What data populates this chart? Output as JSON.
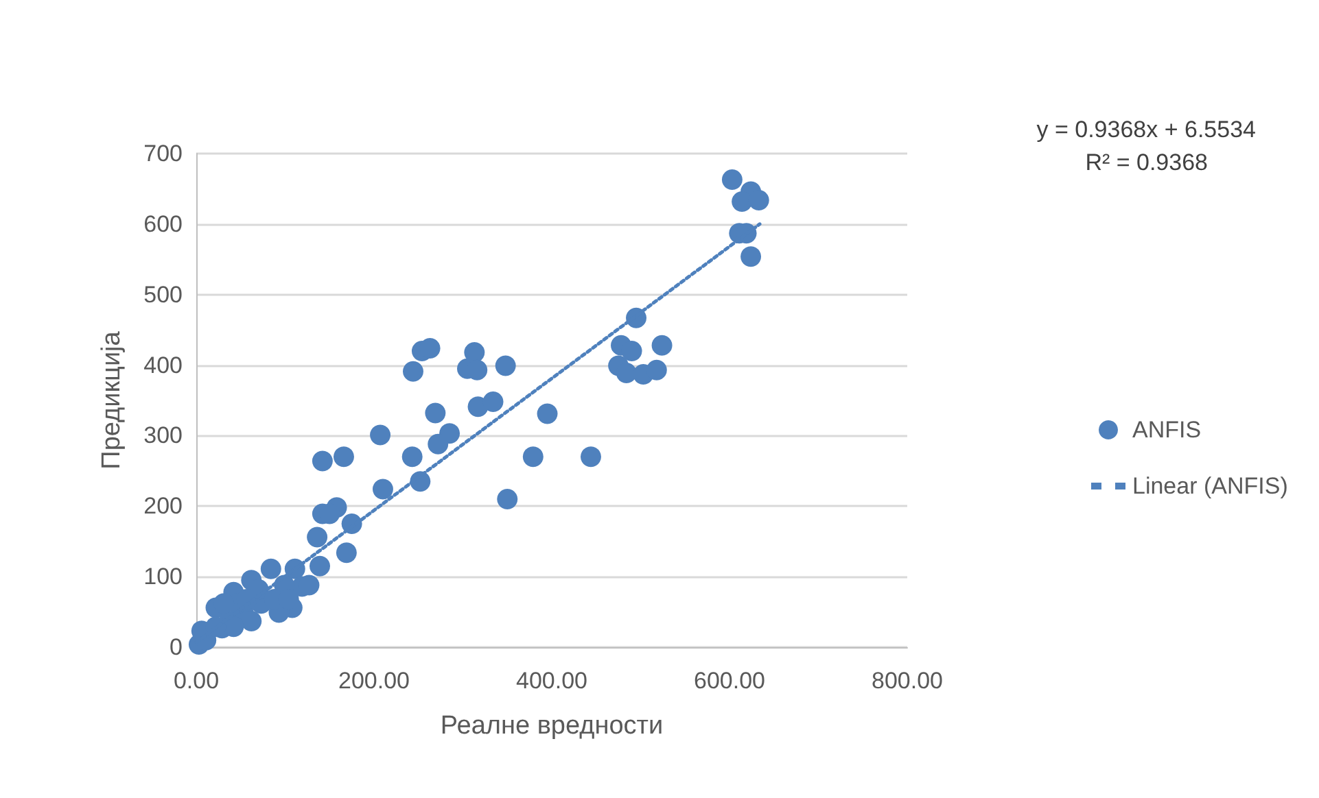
{
  "chart_data": {
    "type": "scatter",
    "xlabel": "Реалне вредности",
    "ylabel": "Предикција",
    "xlim": [
      0,
      800
    ],
    "xticks": [
      {
        "value": 0,
        "label": "0.00"
      },
      {
        "value": 200,
        "label": "200.00"
      },
      {
        "value": 400,
        "label": "400.00"
      },
      {
        "value": 600,
        "label": "600.00"
      },
      {
        "value": 800,
        "label": "800.00"
      }
    ],
    "ylim": [
      0,
      700
    ],
    "yticks": [
      0,
      100,
      200,
      300,
      400,
      500,
      600,
      700
    ],
    "grid": "y",
    "legend": "right",
    "marker": "circle",
    "annotations": [
      "y = 0.9368x + 6.5534",
      "R² = 0.9368"
    ],
    "series": [
      {
        "name": "ANFIS",
        "color": "#4f81bd",
        "x": [
          603,
          624,
          614,
          633,
          611,
          619,
          624,
          478,
          490,
          495,
          524,
          475,
          484,
          503,
          518,
          244,
          254,
          263,
          313,
          305,
          316,
          348,
          207,
          142,
          166,
          243,
          269,
          285,
          272,
          317,
          334,
          395,
          379,
          444,
          350,
          210,
          252,
          142,
          158,
          175,
          136,
          169,
          139,
          150,
          3,
          22,
          42,
          62,
          84,
          111,
          108,
          93,
          119,
          127,
          73,
          53,
          37,
          29,
          11,
          46,
          70,
          99,
          88,
          57,
          31,
          6,
          62,
          42,
          104,
          22
        ],
        "values": [
          663,
          646,
          632,
          634,
          587,
          587,
          554,
          428,
          420,
          467,
          428,
          399,
          389,
          387,
          393,
          391,
          420,
          424,
          418,
          395,
          393,
          399,
          301,
          264,
          270,
          270,
          332,
          303,
          288,
          341,
          348,
          331,
          270,
          270,
          210,
          224,
          235,
          189,
          198,
          175,
          156,
          134,
          115,
          189,
          4,
          56,
          78,
          95,
          111,
          111,
          56,
          49,
          86,
          88,
          62,
          49,
          37,
          27,
          10,
          62,
          82,
          88,
          68,
          68,
          62,
          23,
          37,
          29,
          68,
          29
        ]
      },
      {
        "name": "Linear (ANFIS)",
        "type": "line",
        "color": "#4f81bd",
        "line_style": "dotted",
        "marker": "none",
        "x": [
          0,
          634
        ],
        "values": [
          7,
          600
        ]
      }
    ]
  }
}
